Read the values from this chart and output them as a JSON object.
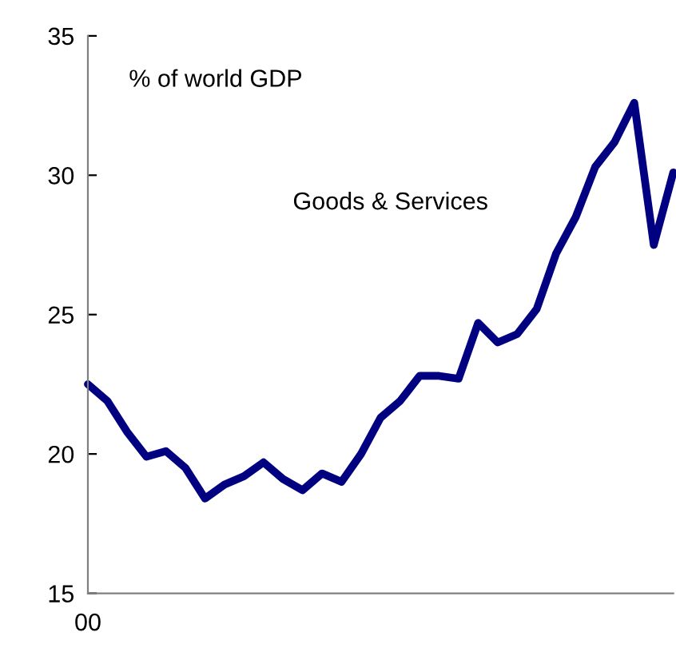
{
  "chart_data": {
    "type": "line",
    "categories": [
      null,
      null,
      null,
      null,
      null,
      null,
      null,
      null,
      null,
      null,
      null,
      null,
      null,
      null,
      null,
      null,
      null,
      null,
      null,
      null,
      null,
      null,
      null,
      null,
      null,
      null,
      null,
      null,
      null,
      null,
      null
    ],
    "series": [
      {
        "color": "#000080",
        "values": [
          22.5,
          21.9,
          20.8,
          19.9,
          20.1,
          19.5,
          18.4,
          18.9,
          19.2,
          19.7,
          19.1,
          18.7,
          19.3,
          19.0,
          20.0,
          21.3,
          21.9,
          22.8,
          22.8,
          22.7,
          24.7,
          24.0,
          24.3,
          25.2,
          27.2,
          28.5,
          30.3,
          31.2,
          32.6,
          27.5,
          30.1
        ]
      }
    ],
    "annotations": [
      "% of world GDP",
      "Goods & Services",
      "00"
    ],
    "ylim": [
      15,
      35
    ],
    "yticks": [
      15,
      20,
      25,
      30,
      35
    ],
    "grid": false,
    "legend": false,
    "marker": "none",
    "line_style": "solid"
  }
}
